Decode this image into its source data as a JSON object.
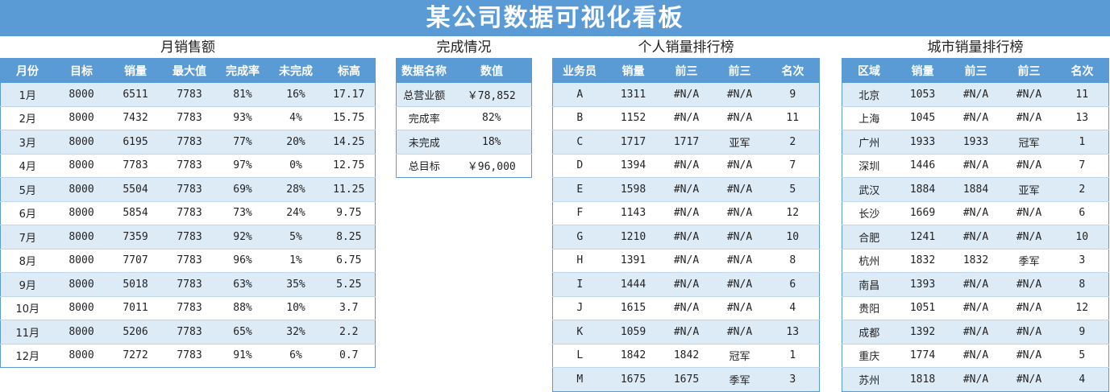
{
  "title": "某公司数据可视化看板",
  "monthly": {
    "title": "月销售额",
    "headers": [
      "月份",
      "目标",
      "销量",
      "最大值",
      "完成率",
      "未完成",
      "标高"
    ],
    "rows": [
      [
        "1月",
        "8000",
        "6511",
        "7783",
        "81%",
        "16%",
        "17.17"
      ],
      [
        "2月",
        "8000",
        "7432",
        "7783",
        "93%",
        "4%",
        "15.75"
      ],
      [
        "3月",
        "8000",
        "6195",
        "7783",
        "77%",
        "20%",
        "14.25"
      ],
      [
        "4月",
        "8000",
        "7783",
        "7783",
        "97%",
        "0%",
        "12.75"
      ],
      [
        "5月",
        "8000",
        "5504",
        "7783",
        "69%",
        "28%",
        "11.25"
      ],
      [
        "6月",
        "8000",
        "5854",
        "7783",
        "73%",
        "24%",
        "9.75"
      ],
      [
        "7月",
        "8000",
        "7359",
        "7783",
        "92%",
        "5%",
        "8.25"
      ],
      [
        "8月",
        "8000",
        "7707",
        "7783",
        "96%",
        "1%",
        "6.75"
      ],
      [
        "9月",
        "8000",
        "5018",
        "7783",
        "63%",
        "35%",
        "5.25"
      ],
      [
        "10月",
        "8000",
        "7011",
        "7783",
        "88%",
        "10%",
        "3.7"
      ],
      [
        "11月",
        "8000",
        "5206",
        "7783",
        "65%",
        "32%",
        "2.2"
      ],
      [
        "12月",
        "8000",
        "7272",
        "7783",
        "91%",
        "6%",
        "0.7"
      ]
    ]
  },
  "completion": {
    "title": "完成情况",
    "headers": [
      "数据名称",
      "数值"
    ],
    "rows": [
      [
        "总营业额",
        "￥78,852"
      ],
      [
        "完成率",
        "82%"
      ],
      [
        "未完成",
        "18%"
      ],
      [
        "总目标",
        "￥96,000"
      ]
    ]
  },
  "personal": {
    "title": "个人销量排行榜",
    "headers": [
      "业务员",
      "销量",
      "前三",
      "前三",
      "名次"
    ],
    "rows": [
      [
        "A",
        "1311",
        "#N/A",
        "#N/A",
        "9"
      ],
      [
        "B",
        "1152",
        "#N/A",
        "#N/A",
        "11"
      ],
      [
        "C",
        "1717",
        "1717",
        "亚军",
        "2"
      ],
      [
        "D",
        "1394",
        "#N/A",
        "#N/A",
        "7"
      ],
      [
        "E",
        "1598",
        "#N/A",
        "#N/A",
        "5"
      ],
      [
        "F",
        "1143",
        "#N/A",
        "#N/A",
        "12"
      ],
      [
        "G",
        "1210",
        "#N/A",
        "#N/A",
        "10"
      ],
      [
        "H",
        "1391",
        "#N/A",
        "#N/A",
        "8"
      ],
      [
        "I",
        "1444",
        "#N/A",
        "#N/A",
        "6"
      ],
      [
        "J",
        "1615",
        "#N/A",
        "#N/A",
        "4"
      ],
      [
        "K",
        "1059",
        "#N/A",
        "#N/A",
        "13"
      ],
      [
        "L",
        "1842",
        "1842",
        "冠军",
        "1"
      ],
      [
        "M",
        "1675",
        "1675",
        "季军",
        "3"
      ]
    ]
  },
  "city": {
    "title": "城市销量排行榜",
    "headers": [
      "区域",
      "销量",
      "前三",
      "前三",
      "名次"
    ],
    "rows": [
      [
        "北京",
        "1053",
        "#N/A",
        "#N/A",
        "11"
      ],
      [
        "上海",
        "1045",
        "#N/A",
        "#N/A",
        "13"
      ],
      [
        "广州",
        "1933",
        "1933",
        "冠军",
        "1"
      ],
      [
        "深圳",
        "1446",
        "#N/A",
        "#N/A",
        "7"
      ],
      [
        "武汉",
        "1884",
        "1884",
        "亚军",
        "2"
      ],
      [
        "长沙",
        "1669",
        "#N/A",
        "#N/A",
        "6"
      ],
      [
        "合肥",
        "1241",
        "#N/A",
        "#N/A",
        "10"
      ],
      [
        "杭州",
        "1832",
        "1832",
        "季军",
        "3"
      ],
      [
        "南昌",
        "1393",
        "#N/A",
        "#N/A",
        "8"
      ],
      [
        "贵阳",
        "1051",
        "#N/A",
        "#N/A",
        "12"
      ],
      [
        "成都",
        "1392",
        "#N/A",
        "#N/A",
        "9"
      ],
      [
        "重庆",
        "1774",
        "#N/A",
        "#N/A",
        "5"
      ],
      [
        "苏州",
        "1818",
        "#N/A",
        "#N/A",
        "4"
      ]
    ]
  }
}
